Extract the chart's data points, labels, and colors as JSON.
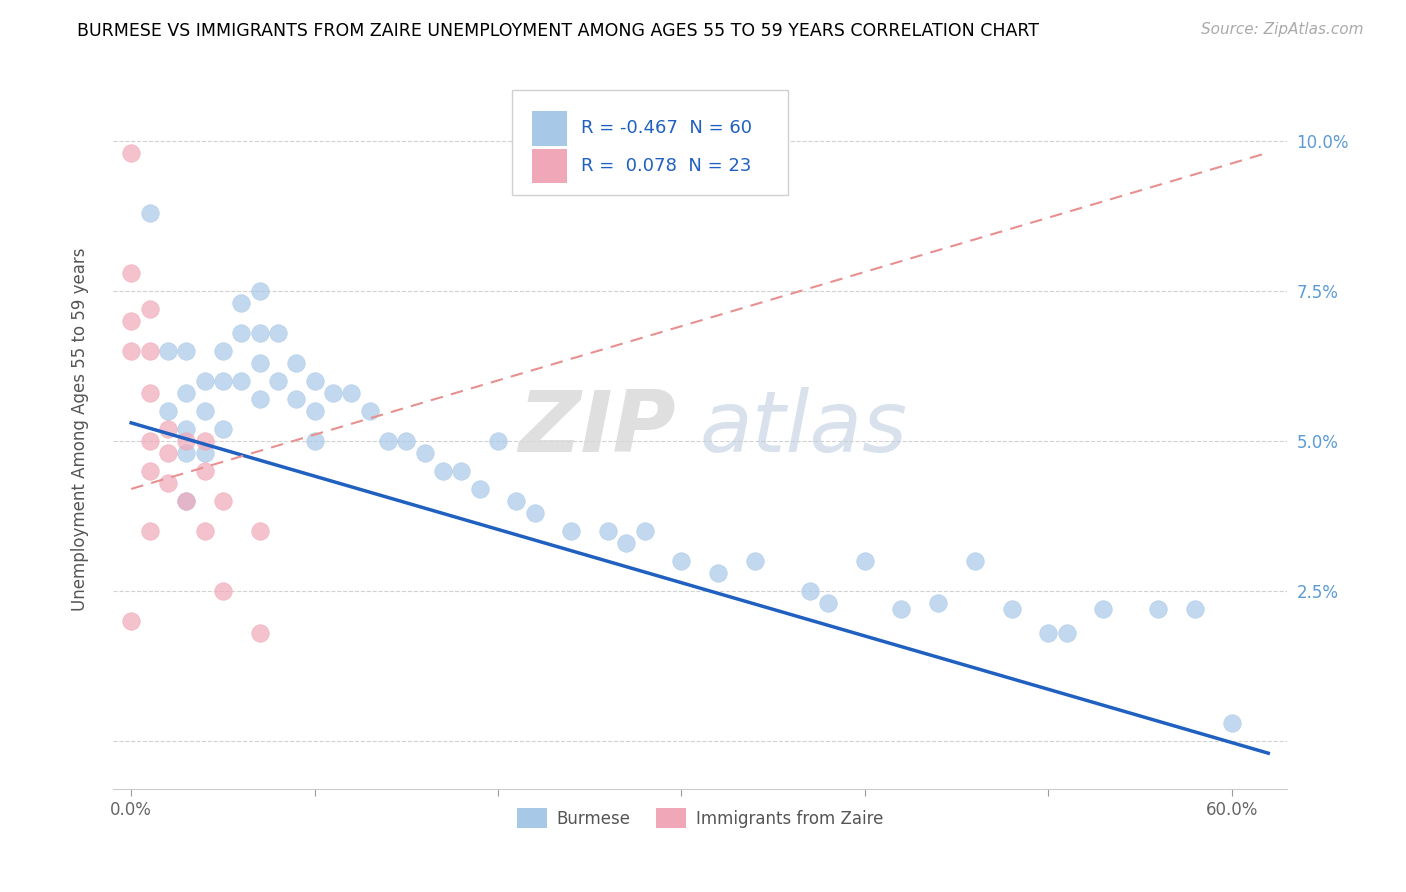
{
  "title": "BURMESE VS IMMIGRANTS FROM ZAIRE UNEMPLOYMENT AMONG AGES 55 TO 59 YEARS CORRELATION CHART",
  "source": "Source: ZipAtlas.com",
  "ylabel": "Unemployment Among Ages 55 to 59 years",
  "x_tick_labels": [
    "0.0%",
    "",
    "",
    "",
    "",
    "",
    "60.0%"
  ],
  "x_tick_values": [
    0.0,
    0.1,
    0.2,
    0.3,
    0.4,
    0.5,
    0.6
  ],
  "y_tick_labels_right": [
    "",
    "2.5%",
    "5.0%",
    "7.5%",
    "10.0%"
  ],
  "y_tick_values": [
    0.0,
    0.025,
    0.05,
    0.075,
    0.1
  ],
  "xlim": [
    -0.01,
    0.63
  ],
  "ylim": [
    -0.008,
    0.112
  ],
  "blue_R": -0.467,
  "blue_N": 60,
  "pink_R": 0.078,
  "pink_N": 23,
  "blue_color": "#a8c8e8",
  "pink_color": "#f0a8b8",
  "blue_line_color": "#2060c0",
  "pink_line_color": "#e89090",
  "legend_label_blue": "Burmese",
  "legend_label_pink": "Immigrants from Zaire",
  "watermark_zip": "ZIP",
  "watermark_atlas": "atlas",
  "blue_scatter_x": [
    0.01,
    0.02,
    0.02,
    0.03,
    0.03,
    0.03,
    0.03,
    0.03,
    0.04,
    0.04,
    0.04,
    0.05,
    0.05,
    0.05,
    0.06,
    0.06,
    0.06,
    0.07,
    0.07,
    0.07,
    0.07,
    0.08,
    0.08,
    0.09,
    0.09,
    0.1,
    0.1,
    0.1,
    0.11,
    0.12,
    0.13,
    0.14,
    0.15,
    0.16,
    0.17,
    0.18,
    0.19,
    0.2,
    0.21,
    0.22,
    0.24,
    0.26,
    0.27,
    0.28,
    0.3,
    0.32,
    0.34,
    0.37,
    0.38,
    0.4,
    0.42,
    0.44,
    0.46,
    0.48,
    0.5,
    0.51,
    0.53,
    0.56,
    0.58,
    0.6
  ],
  "blue_scatter_y": [
    0.088,
    0.065,
    0.055,
    0.065,
    0.058,
    0.052,
    0.048,
    0.04,
    0.06,
    0.055,
    0.048,
    0.065,
    0.06,
    0.052,
    0.073,
    0.068,
    0.06,
    0.075,
    0.068,
    0.063,
    0.057,
    0.068,
    0.06,
    0.063,
    0.057,
    0.06,
    0.055,
    0.05,
    0.058,
    0.058,
    0.055,
    0.05,
    0.05,
    0.048,
    0.045,
    0.045,
    0.042,
    0.05,
    0.04,
    0.038,
    0.035,
    0.035,
    0.033,
    0.035,
    0.03,
    0.028,
    0.03,
    0.025,
    0.023,
    0.03,
    0.022,
    0.023,
    0.03,
    0.022,
    0.018,
    0.018,
    0.022,
    0.022,
    0.022,
    0.003
  ],
  "pink_scatter_x": [
    0.0,
    0.0,
    0.0,
    0.0,
    0.0,
    0.01,
    0.01,
    0.01,
    0.01,
    0.01,
    0.01,
    0.02,
    0.02,
    0.02,
    0.03,
    0.03,
    0.04,
    0.04,
    0.04,
    0.05,
    0.05,
    0.07,
    0.07
  ],
  "pink_scatter_y": [
    0.098,
    0.078,
    0.07,
    0.065,
    0.02,
    0.072,
    0.065,
    0.058,
    0.05,
    0.045,
    0.035,
    0.052,
    0.048,
    0.043,
    0.05,
    0.04,
    0.05,
    0.045,
    0.035,
    0.04,
    0.025,
    0.035,
    0.018
  ],
  "blue_line_x_start": 0.0,
  "blue_line_x_end": 0.62,
  "blue_line_y_start": 0.053,
  "blue_line_y_end": -0.002,
  "pink_line_x_start": 0.0,
  "pink_line_x_end": 0.62,
  "pink_line_y_start": 0.042,
  "pink_line_y_end": 0.098
}
